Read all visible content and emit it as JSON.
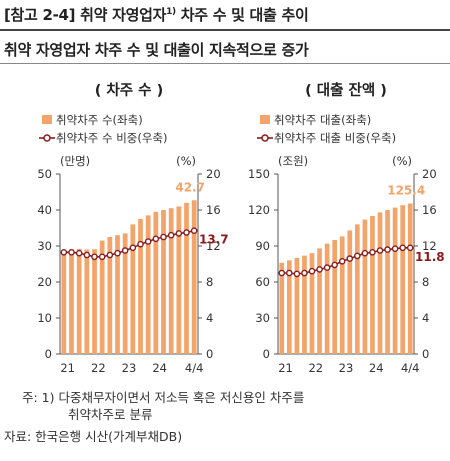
{
  "header": {
    "title": "[참고 2-4] 취약 자영업자",
    "title_sup": "1)",
    "title_tail": " 차주 수 및 대출 추이",
    "subtitle": "취약 자영업자 차주 수 및 대출이 지속적으로 증가"
  },
  "footnotes": {
    "note1_line1": "주: 1) 다중채무자이면서 저소득 혹은 저신용인 차주를",
    "note1_line2": "취약차주로 분류",
    "source": "자료: 한국은행 시산(가계부채DB)"
  },
  "colors": {
    "bar": "#f2a46a",
    "line": "#8b1a1a",
    "bar_label": "#f2a46a",
    "line_label": "#8b1a1a"
  },
  "chart_data": [
    {
      "type": "bar+line",
      "title": "( 차주 수 )",
      "legend": [
        "취약차주 수(좌축)",
        "취약차주 수 비중(우축)"
      ],
      "left_unit": "(만명)",
      "right_unit": "(%)",
      "ylim_left": [
        0,
        50
      ],
      "yticks_left": [
        "0",
        "10",
        "20",
        "30",
        "40",
        "50"
      ],
      "ylim_right": [
        0,
        20
      ],
      "yticks_right": [
        "0",
        "4",
        "8",
        "12",
        "16",
        "20"
      ],
      "xticks": [
        "21",
        "22",
        "23",
        "24",
        "4/4"
      ],
      "series": [
        {
          "name": "취약차주 수(좌축)",
          "kind": "bar",
          "values": [
            28.8,
            29.0,
            29.2,
            29.0,
            29.1,
            31.5,
            32.5,
            33.0,
            33.5,
            36.0,
            37.5,
            38.5,
            39.5,
            40.0,
            40.5,
            41.0,
            42.0,
            42.7
          ]
        },
        {
          "name": "취약차주 수 비중(우축)",
          "kind": "line",
          "values": [
            11.3,
            11.3,
            11.2,
            11.0,
            10.8,
            10.8,
            11.0,
            11.2,
            11.5,
            11.8,
            12.2,
            12.5,
            12.8,
            13.0,
            13.2,
            13.4,
            13.5,
            13.7
          ]
        }
      ],
      "last_bar_label": "42.7",
      "last_line_label": "13.7"
    },
    {
      "type": "bar+line",
      "title": "( 대출 잔액 )",
      "legend": [
        "취약차주 대출(좌축)",
        "취약차주 대출 비중(우축)"
      ],
      "left_unit": "(조원)",
      "right_unit": "(%)",
      "ylim_left": [
        0,
        150
      ],
      "yticks_left": [
        "0",
        "30",
        "60",
        "90",
        "120",
        "150"
      ],
      "ylim_right": [
        0,
        20
      ],
      "yticks_right": [
        "0",
        "4",
        "8",
        "12",
        "16",
        "20"
      ],
      "xticks": [
        "21",
        "22",
        "23",
        "24",
        "4/4"
      ],
      "series": [
        {
          "name": "취약차주 대출(좌축)",
          "kind": "bar",
          "values": [
            76,
            78,
            80,
            82,
            84,
            88,
            92,
            95,
            98,
            103,
            108,
            112,
            115,
            118,
            120,
            122,
            124,
            125.4
          ]
        },
        {
          "name": "취약차주 대출 비중(우축)",
          "kind": "line",
          "values": [
            9.0,
            9.0,
            8.9,
            9.0,
            9.2,
            9.4,
            9.6,
            9.9,
            10.3,
            10.6,
            10.9,
            11.2,
            11.3,
            11.5,
            11.6,
            11.7,
            11.8,
            11.8
          ]
        }
      ],
      "last_bar_label": "125.4",
      "last_line_label": "11.8"
    }
  ]
}
